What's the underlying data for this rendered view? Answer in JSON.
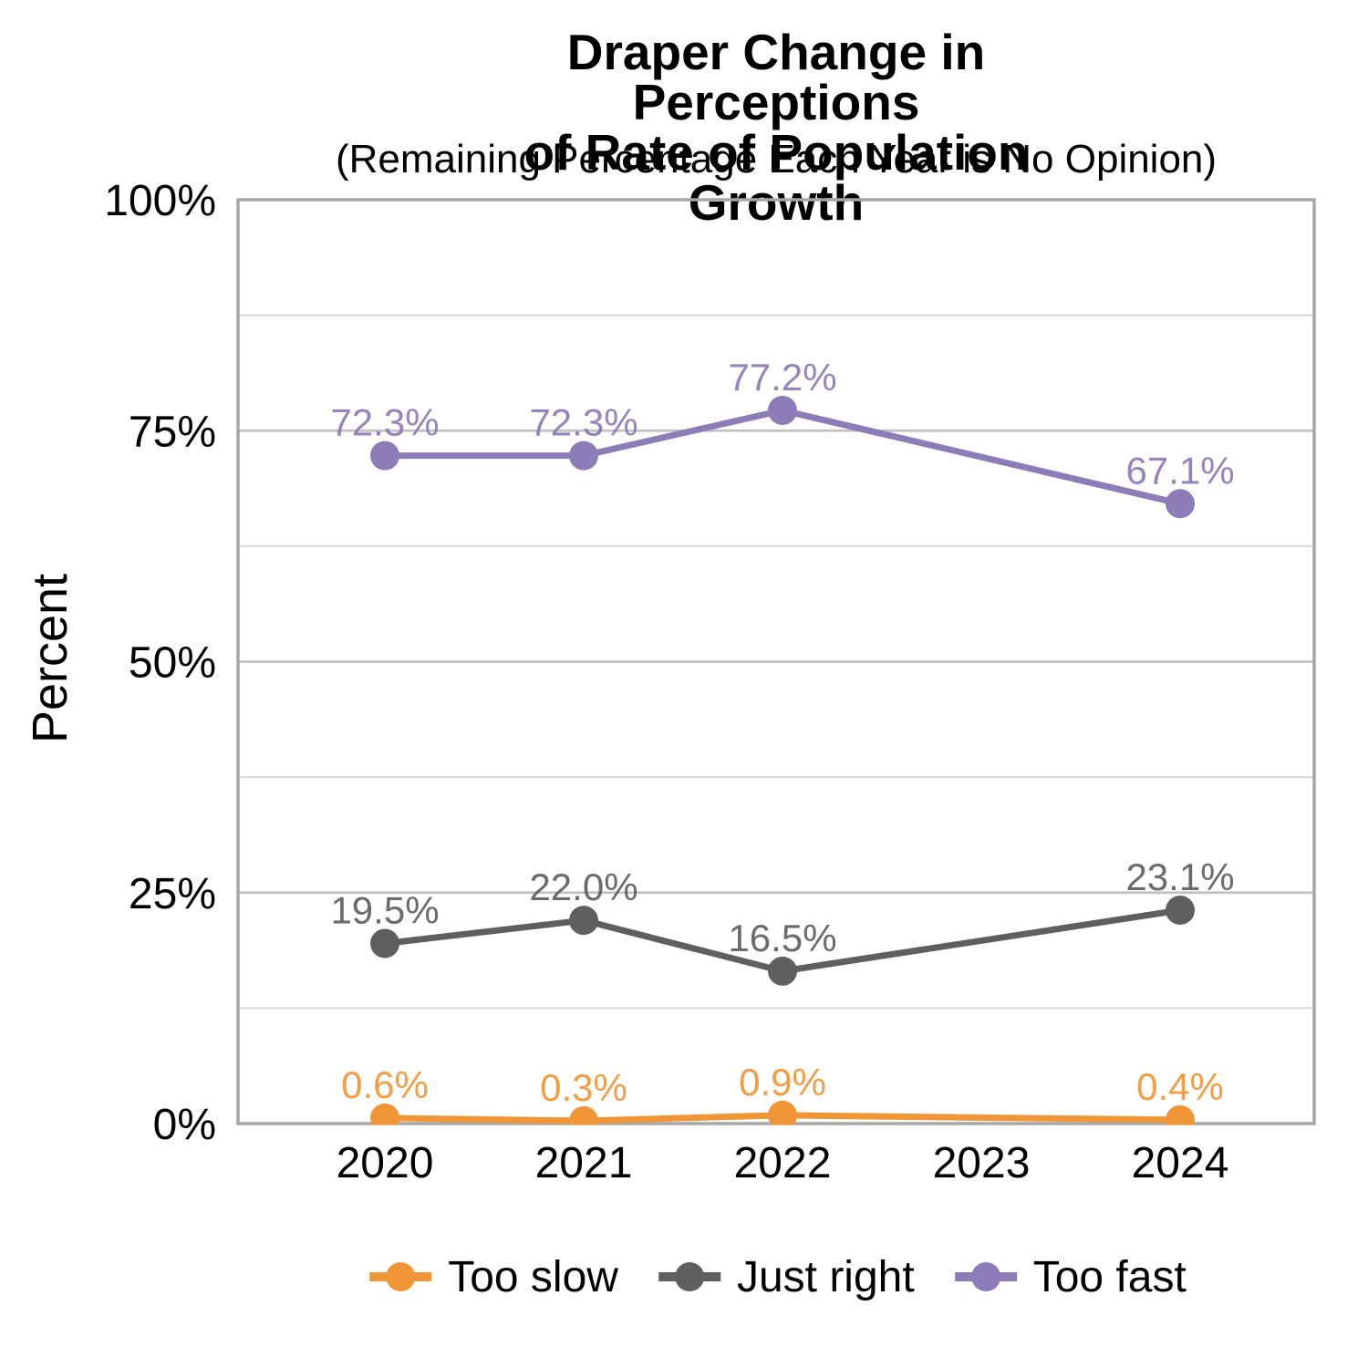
{
  "chart": {
    "title_line1": "Draper Change in Perceptions",
    "title_line2": "of Rate of Population Growth",
    "subtitle": "(Remaining Percentage Each Year is No Opinion)"
  },
  "chart_data": {
    "type": "line",
    "title": "Draper Change in Perceptions of Rate of Population Growth",
    "subtitle": "(Remaining Percentage Each Year is No Opinion)",
    "xlabel": "",
    "ylabel": "Percent",
    "categories": [
      "2020",
      "2021",
      "2022",
      "2023",
      "2024"
    ],
    "series": [
      {
        "name": "Too slow",
        "color": "#F09637",
        "values": [
          0.6,
          0.3,
          0.9,
          null,
          0.4
        ],
        "labels": [
          "0.6%",
          "0.3%",
          "0.9%",
          null,
          "0.4%"
        ]
      },
      {
        "name": "Just right",
        "color": "#5F5F5F",
        "values": [
          19.5,
          22.0,
          16.5,
          null,
          23.1
        ],
        "labels": [
          "19.5%",
          "22.0%",
          "16.5%",
          null,
          "23.1%"
        ]
      },
      {
        "name": "Too fast",
        "color": "#8C7CB8",
        "values": [
          72.3,
          72.3,
          77.2,
          null,
          67.1
        ],
        "labels": [
          "72.3%",
          "72.3%",
          "77.2%",
          null,
          "67.1%"
        ]
      }
    ],
    "ylim": [
      0,
      100
    ],
    "yticks": {
      "values": [
        0,
        25,
        50,
        75,
        100
      ],
      "labels": [
        "0%",
        "25%",
        "50%",
        "75%",
        "100%"
      ]
    },
    "minor_gridlines": [
      12.5,
      37.5,
      62.5,
      87.5
    ],
    "grid": true,
    "legend_position": "bottom",
    "data_labels": true,
    "note": "No data points shown for 2023"
  },
  "colors": {
    "panel_border": "#A6A6A6",
    "grid_major": "#C2C2C2",
    "grid_minor": "#DCDCDC",
    "tick_text": "#000000"
  }
}
